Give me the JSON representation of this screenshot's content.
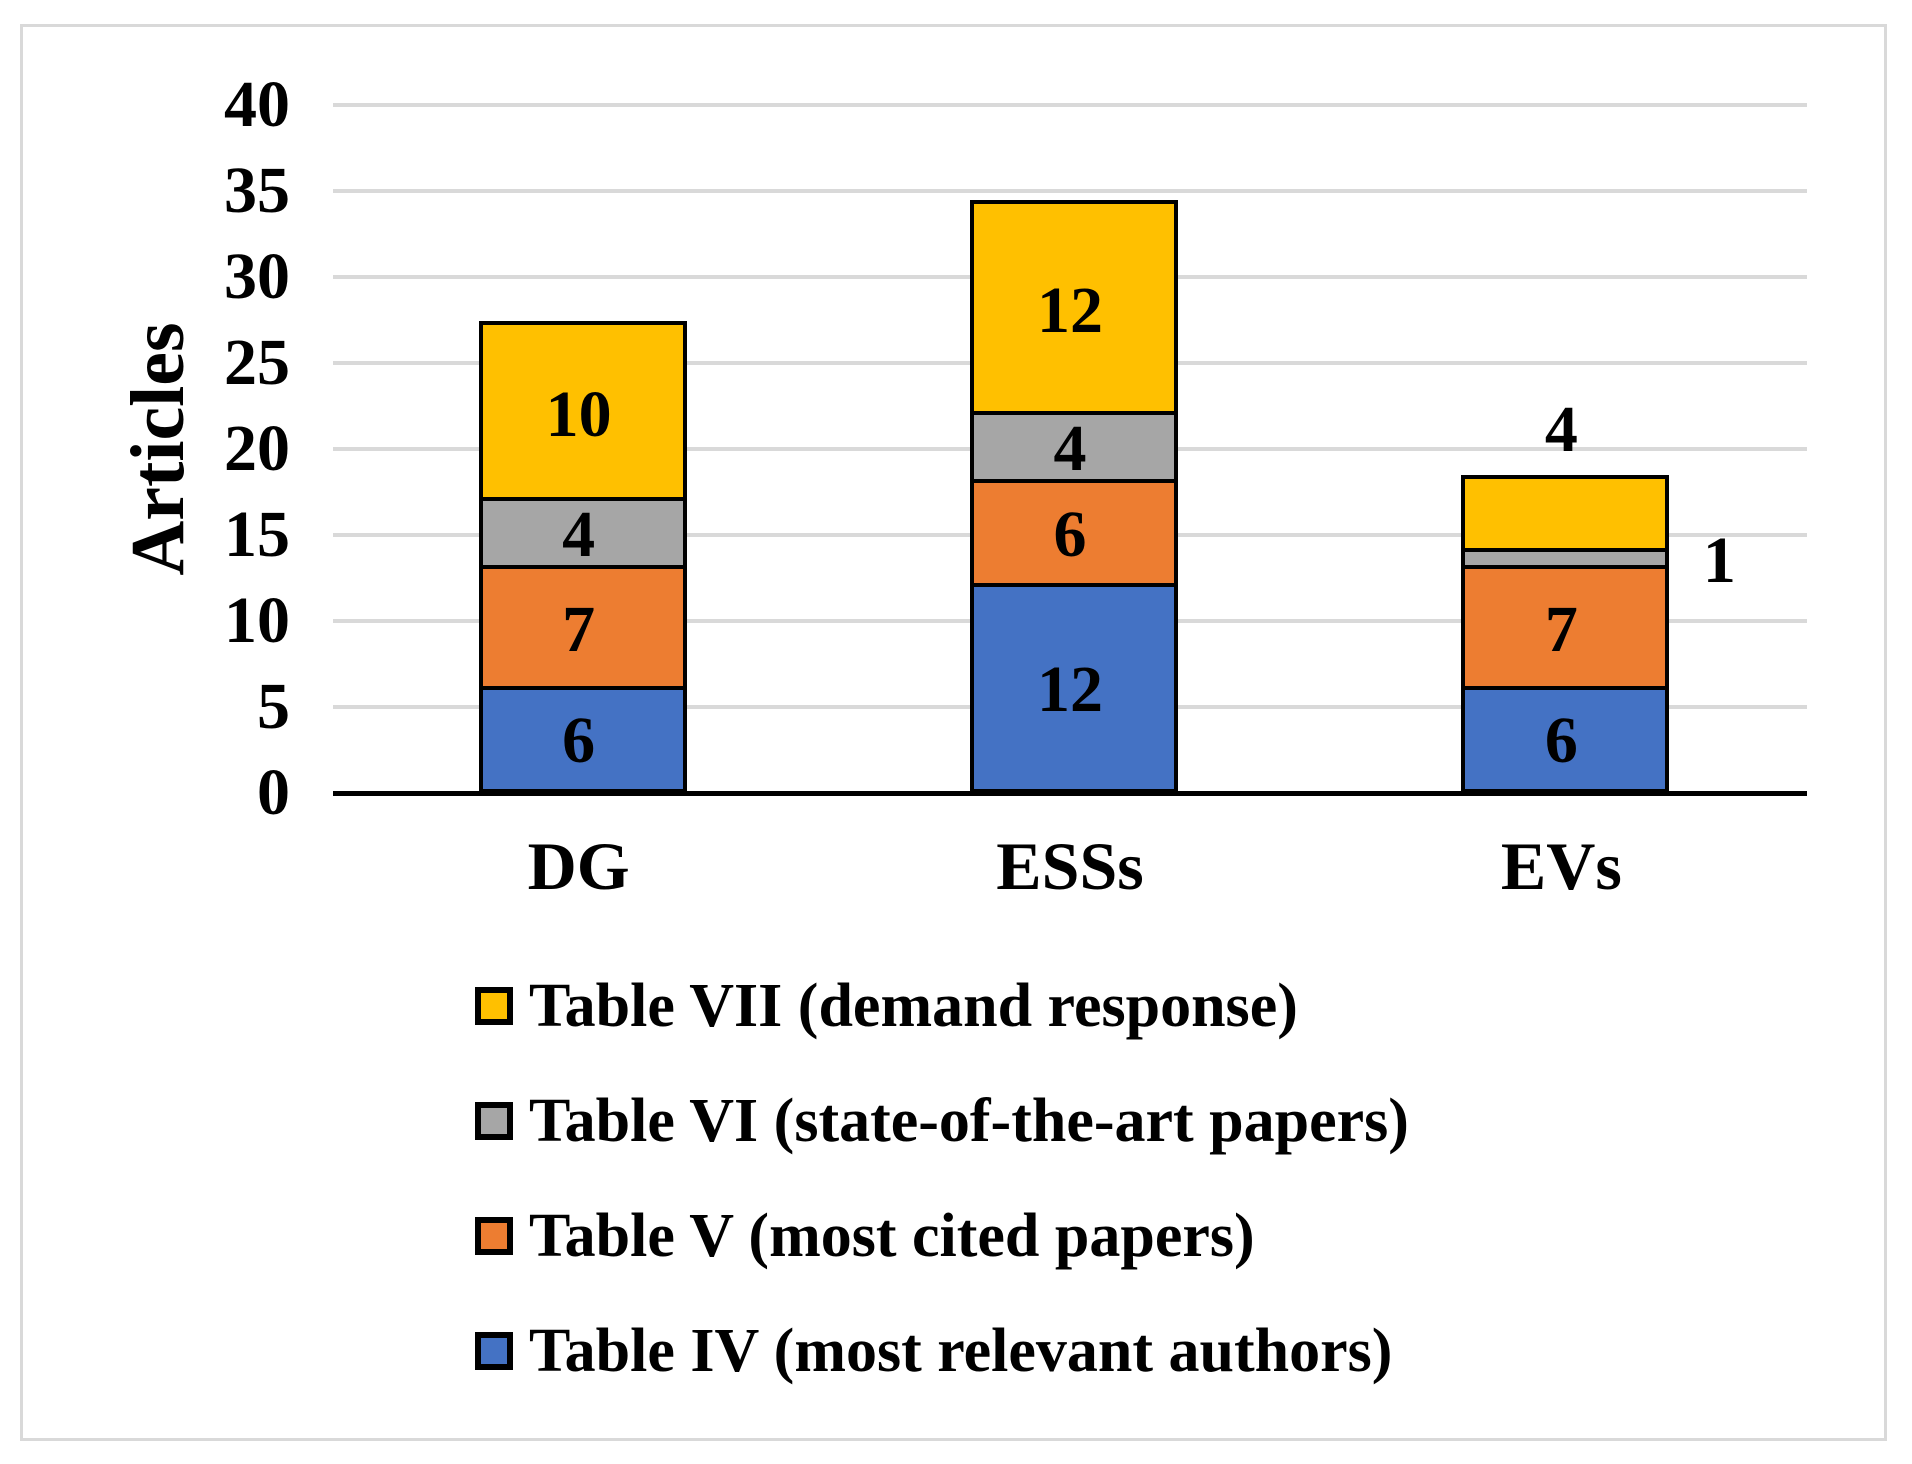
{
  "chart_data": {
    "type": "bar",
    "subtype": "stacked-vertical",
    "title": "",
    "ylabel": "Articles",
    "xlabel": "",
    "categories": [
      "DG",
      "ESSs",
      "EVs"
    ],
    "series": [
      {
        "name": "Table IV (most relevant authors)",
        "color": "#4472c4",
        "values": [
          6,
          12,
          6
        ]
      },
      {
        "name": "Table V (most cited papers)",
        "color": "#ed7d31",
        "values": [
          7,
          6,
          7
        ]
      },
      {
        "name": "Table VI (state-of-the-art papers)",
        "color": "#a6a6a6",
        "values": [
          4,
          4,
          1
        ]
      },
      {
        "name": "Table VII (demand response)",
        "color": "#ffc000",
        "values": [
          10,
          12,
          4
        ]
      }
    ],
    "data_labels_shown": true,
    "label_placements": [
      {
        "category": "EVs",
        "series": "Table VI (state-of-the-art papers)",
        "placement": "right"
      },
      {
        "category": "EVs",
        "series": "Table VII (demand response)",
        "placement": "above"
      }
    ],
    "ylim": [
      0,
      40
    ],
    "yticks": [
      0,
      5,
      10,
      15,
      20,
      25,
      30,
      35,
      40
    ],
    "grid": "horizontal",
    "gridline_color": "#d9d9d9",
    "axis_color": "#000000",
    "frame_color": "#d9d9d9",
    "legend_position": "bottom-left",
    "legend_order": "reversed"
  }
}
